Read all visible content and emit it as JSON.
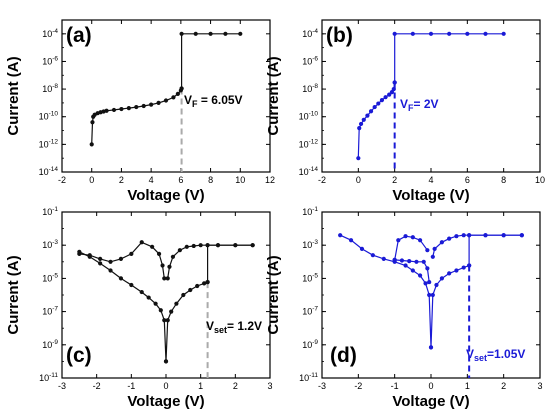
{
  "chart_data": [
    {
      "type": "line",
      "panel_label": "(a)",
      "xlabel": "Voltage (V)",
      "ylabel": "Current (A)",
      "xlim": [
        -2,
        12
      ],
      "ylim": [
        1e-14,
        0.001
      ],
      "y_scale": "log",
      "x_ticks": [
        -2,
        0,
        2,
        4,
        6,
        8,
        10,
        12
      ],
      "x_tick_labels": [
        "-2",
        "0",
        "2",
        "4",
        "6",
        "8",
        "10",
        "12"
      ],
      "y_ticks": [
        1e-14,
        1e-12,
        1e-10,
        1e-08,
        1e-06,
        0.0001
      ],
      "y_tick_labels": [
        {
          "base": "10",
          "exp": "-14"
        },
        {
          "base": "10",
          "exp": "-12"
        },
        {
          "base": "10",
          "exp": "-10"
        },
        {
          "base": "10",
          "exp": "-8"
        },
        {
          "base": "10",
          "exp": "-6"
        },
        {
          "base": "10",
          "exp": "-4"
        }
      ],
      "color": "#111111",
      "series": [
        {
          "x": [
            0,
            0.05,
            0.1,
            0.2,
            0.4,
            0.6,
            0.8,
            1.0,
            1.5,
            2.0,
            2.5,
            3.0,
            3.5,
            4.0,
            4.5,
            5.0,
            5.5,
            5.8,
            6.0,
            6.05
          ],
          "y": [
            1e-12,
            4e-11,
            1e-10,
            1.4e-10,
            1.8e-10,
            2.1e-10,
            2.4e-10,
            2.7e-10,
            3.1e-10,
            3.6e-10,
            4.2e-10,
            5e-10,
            6e-10,
            7.5e-10,
            1e-09,
            1.5e-09,
            2.5e-09,
            4.5e-09,
            8e-09,
            1.1e-08
          ]
        },
        {
          "x": [
            6.05,
            6.05,
            7,
            8,
            9,
            10
          ],
          "y": [
            1.1e-08,
            0.0001,
            0.0001,
            0.0001,
            0.0001,
            0.0001
          ]
        }
      ],
      "dashed_line": {
        "x": 6.05,
        "y_from": 1.1e-08,
        "color": "#aaaaaa"
      },
      "annotation": {
        "main": "V",
        "sub": "F",
        "rest": " = 6.05V",
        "color": "#000000"
      }
    },
    {
      "type": "line",
      "panel_label": "(b)",
      "xlabel": "Voltage (V)",
      "ylabel": "Current (A)",
      "xlim": [
        -2,
        10
      ],
      "ylim": [
        1e-14,
        0.001
      ],
      "y_scale": "log",
      "x_ticks": [
        -2,
        0,
        2,
        4,
        6,
        8,
        10
      ],
      "x_tick_labels": [
        "-2",
        "0",
        "2",
        "4",
        "6",
        "8",
        "10"
      ],
      "y_ticks": [
        1e-14,
        1e-12,
        1e-10,
        1e-08,
        1e-06,
        0.0001
      ],
      "y_tick_labels": [
        {
          "base": "10",
          "exp": "-14"
        },
        {
          "base": "10",
          "exp": "-12"
        },
        {
          "base": "10",
          "exp": "-10"
        },
        {
          "base": "10",
          "exp": "-8"
        },
        {
          "base": "10",
          "exp": "-6"
        },
        {
          "base": "10",
          "exp": "-4"
        }
      ],
      "color": "#1a1ad6",
      "series": [
        {
          "x": [
            0,
            0.05,
            0.15,
            0.3,
            0.5,
            0.7,
            0.9,
            1.1,
            1.3,
            1.5,
            1.7,
            1.85,
            1.95,
            2.0
          ],
          "y": [
            1e-13,
            1.5e-11,
            3e-11,
            6e-11,
            1.2e-10,
            2.5e-10,
            5e-10,
            9e-10,
            1.6e-09,
            2.6e-09,
            4e-09,
            6e-09,
            1e-08,
            3e-08
          ]
        },
        {
          "x": [
            2.0,
            2.0,
            3,
            4,
            5,
            6,
            7,
            8
          ],
          "y": [
            3e-08,
            0.0001,
            0.0001,
            0.0001,
            0.0001,
            0.0001,
            0.0001,
            0.0001
          ]
        }
      ],
      "dashed_line": {
        "x": 2.0,
        "y_from": 3e-08,
        "color": "#1a1ad6"
      },
      "annotation": {
        "main": "V",
        "sub": "F",
        "rest": "= 2V",
        "color": "#1a1ad6"
      }
    },
    {
      "type": "line",
      "panel_label": "(c)",
      "xlabel": "Voltage (V)",
      "ylabel": "Current (A)",
      "xlim": [
        -3,
        3
      ],
      "ylim": [
        1e-11,
        0.1
      ],
      "y_scale": "log",
      "x_ticks": [
        -3,
        -2,
        -1,
        0,
        1,
        2,
        3
      ],
      "x_tick_labels": [
        "-3",
        "-2",
        "-1",
        "0",
        "1",
        "2",
        "3"
      ],
      "y_ticks": [
        1e-11,
        1e-09,
        1e-07,
        1e-05,
        0.001,
        0.1
      ],
      "y_tick_labels": [
        {
          "base": "10",
          "exp": "-11"
        },
        {
          "base": "10",
          "exp": "-9"
        },
        {
          "base": "10",
          "exp": "-7"
        },
        {
          "base": "10",
          "exp": "-5"
        },
        {
          "base": "10",
          "exp": "-3"
        },
        {
          "base": "10",
          "exp": "-1"
        }
      ],
      "color": "#111111",
      "series": [
        {
          "x": [
            -2.5,
            -2.2,
            -1.9,
            -1.6,
            -1.3,
            -1.0,
            -0.7,
            -0.5,
            -0.3,
            -0.15,
            -0.05,
            0
          ],
          "y": [
            0.0004,
            0.0002,
            8e-05,
            3e-05,
            1e-05,
            4e-06,
            1.5e-06,
            7e-07,
            3e-07,
            1.2e-07,
            3e-08,
            1e-10
          ]
        },
        {
          "x": [
            0,
            0.05,
            0.15,
            0.3,
            0.5,
            0.7,
            0.9,
            1.1,
            1.2
          ],
          "y": [
            1e-10,
            3e-08,
            1e-07,
            3e-07,
            1e-06,
            2e-06,
            3.5e-06,
            5e-06,
            6e-06
          ]
        },
        {
          "x": [
            1.2,
            1.2,
            1.5,
            2.0,
            2.5
          ],
          "y": [
            6e-06,
            0.001,
            0.001,
            0.001,
            0.001
          ]
        },
        {
          "x": [
            -0.05,
            -0.1,
            -0.2,
            -0.4,
            -0.7,
            -1.0,
            -1.3,
            -1.6,
            -1.9,
            -2.2,
            -2.5
          ],
          "y": [
            1e-05,
            6e-05,
            0.0003,
            0.0008,
            0.0015,
            0.0003,
            0.00015,
            0.0001,
            0.00015,
            0.00025,
            0.0003
          ]
        },
        {
          "x": [
            0.05,
            0.1,
            0.2,
            0.4,
            0.6,
            0.8,
            1.0,
            1.2,
            1.5,
            2.0,
            2.5
          ],
          "y": [
            1e-05,
            5e-05,
            0.0002,
            0.0005,
            0.0008,
            0.0009,
            0.001,
            0.001,
            0.001,
            0.001,
            0.001
          ]
        }
      ],
      "dashed_line": {
        "x": 1.2,
        "y_from": 6e-06,
        "color": "#aaaaaa"
      },
      "annotation": {
        "main": "V",
        "sub": "set",
        "rest": "= 1.2V",
        "color": "#000000"
      }
    },
    {
      "type": "line",
      "panel_label": "(d)",
      "xlabel": "Voltage (V)",
      "ylabel": "Current (A)",
      "xlim": [
        -3,
        3
      ],
      "ylim": [
        1e-11,
        0.1
      ],
      "y_scale": "log",
      "x_ticks": [
        -3,
        -2,
        -1,
        0,
        1,
        2,
        3
      ],
      "x_tick_labels": [
        "-3",
        "-2",
        "-1",
        "0",
        "1",
        "2",
        "3"
      ],
      "y_ticks": [
        1e-11,
        1e-09,
        1e-07,
        1e-05,
        0.001,
        0.1
      ],
      "y_tick_labels": [
        {
          "base": "10",
          "exp": "-11"
        },
        {
          "base": "10",
          "exp": "-9"
        },
        {
          "base": "10",
          "exp": "-7"
        },
        {
          "base": "10",
          "exp": "-5"
        },
        {
          "base": "10",
          "exp": "-3"
        },
        {
          "base": "10",
          "exp": "-1"
        }
      ],
      "color": "#1a1ad6",
      "series": [
        {
          "x": [
            -2.5,
            -2.2,
            -1.9,
            -1.6,
            -1.3,
            -1.0,
            -0.7,
            -0.5,
            -0.3,
            -0.15,
            -0.05,
            0
          ],
          "y": [
            0.004,
            0.002,
            0.0006,
            0.00025,
            0.00015,
            0.0001,
            6e-05,
            3e-05,
            1.5e-05,
            5e-06,
            1e-06,
            7e-10
          ]
        },
        {
          "x": [
            0,
            0.05,
            0.15,
            0.3,
            0.5,
            0.7,
            0.9,
            1.05
          ],
          "y": [
            7e-10,
            1e-06,
            4e-06,
            1e-05,
            2e-05,
            3e-05,
            4.5e-05,
            6e-05
          ]
        },
        {
          "x": [
            1.05,
            1.05,
            1.5,
            2.0,
            2.5
          ],
          "y": [
            6e-05,
            0.004,
            0.004,
            0.004,
            0.004
          ]
        },
        {
          "x": [
            -0.05,
            -0.1,
            -0.2,
            -0.4,
            -0.6,
            -0.8,
            -1.0
          ],
          "y": [
            6e-06,
            4e-05,
            0.0001,
            0.0001,
            0.00011,
            0.00012,
            0.00013
          ]
        },
        {
          "x": [
            -1.0,
            -0.9,
            -0.7,
            -0.5,
            -0.3,
            -0.1
          ],
          "y": [
            0.00013,
            0.002,
            0.0035,
            0.003,
            0.002,
            0.0005
          ]
        },
        {
          "x": [
            0.05,
            0.1,
            0.3,
            0.5,
            0.7,
            0.9,
            1.05,
            1.5,
            2.0,
            2.5
          ],
          "y": [
            0.0002,
            0.0006,
            0.0015,
            0.0025,
            0.0035,
            0.004,
            0.004,
            0.004,
            0.004,
            0.004
          ]
        }
      ],
      "dashed_line": {
        "x": 1.05,
        "y_from": 6e-05,
        "color": "#1a1ad6"
      },
      "annotation": {
        "main": "V",
        "sub": "set",
        "rest": "=1.05V",
        "color": "#1a1ad6"
      }
    }
  ]
}
